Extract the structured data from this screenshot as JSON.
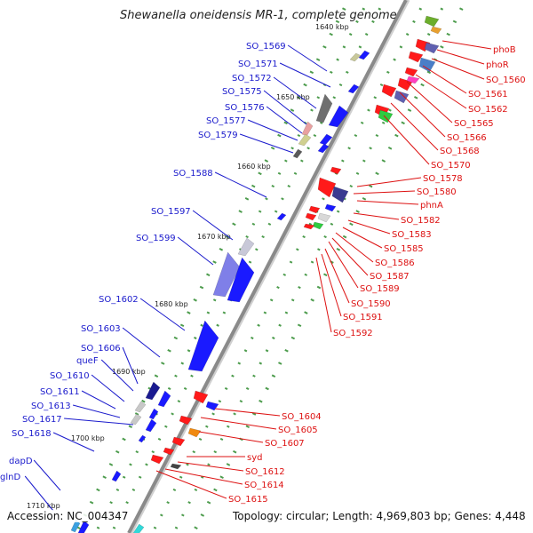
{
  "title": "Shewanella oneidensis MR-1, complete genome",
  "footer": {
    "accession": "Accession: NC_004347",
    "summary": "Topology: circular; Length: 4,969,803 bp; Genes: 4,448"
  },
  "colors": {
    "backbone": "#8a8a8a",
    "tick": "#2e8b2e",
    "label_left": "#1a1acc",
    "label_right": "#dd1111",
    "forward": "#1a1aff",
    "reverse": "#ff1a1a"
  },
  "ticks": [
    "1640 kbp",
    "1650 kbp",
    "1660 kbp",
    "1670 kbp",
    "1680 kbp",
    "1690 kbp",
    "1700 kbp",
    "1710 kbp"
  ],
  "left_labels": [
    "SO_1569",
    "SO_1571",
    "SO_1572",
    "SO_1575",
    "SO_1576",
    "SO_1577",
    "SO_1579",
    "SO_1588",
    "SO_1597",
    "SO_1599",
    "SO_1602",
    "SO_1603",
    "SO_1606",
    "queF",
    "SO_1610",
    "SO_1611",
    "SO_1613",
    "SO_1617",
    "SO_1618",
    "dapD",
    "glnD"
  ],
  "right_labels": [
    "phoB",
    "phoR",
    "SO_1560",
    "SO_1561",
    "SO_1562",
    "SO_1565",
    "SO_1566",
    "SO_1568",
    "SO_1570",
    "SO_1578",
    "SO_1580",
    "phnA",
    "SO_1582",
    "SO_1583",
    "SO_1585",
    "SO_1586",
    "SO_1587",
    "SO_1589",
    "SO_1590",
    "SO_1591",
    "SO_1592",
    "SO_1604",
    "SO_1605",
    "SO_1607",
    "syd",
    "SO_1612",
    "SO_1614",
    "SO_1615"
  ]
}
